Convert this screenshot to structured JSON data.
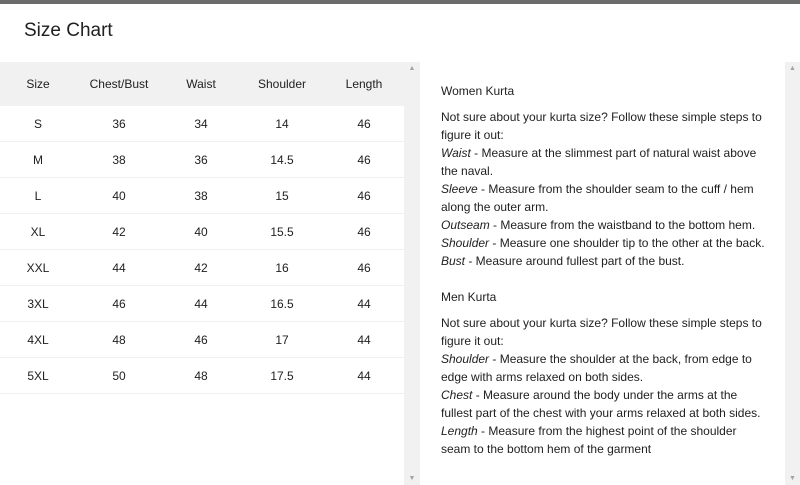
{
  "title": "Size Chart",
  "table": {
    "headers": [
      "Size",
      "Chest/Bust",
      "Waist",
      "Shoulder",
      "Length"
    ],
    "rows": [
      [
        "S",
        "36",
        "34",
        "14",
        "46"
      ],
      [
        "M",
        "38",
        "36",
        "14.5",
        "46"
      ],
      [
        "L",
        "40",
        "38",
        "15",
        "46"
      ],
      [
        "XL",
        "42",
        "40",
        "15.5",
        "46"
      ],
      [
        "XXL",
        "44",
        "42",
        "16",
        "46"
      ],
      [
        "3XL",
        "46",
        "44",
        "16.5",
        "44"
      ],
      [
        "4XL",
        "48",
        "46",
        "17",
        "44"
      ],
      [
        "5XL",
        "50",
        "48",
        "17.5",
        "44"
      ]
    ]
  },
  "guide": {
    "women": {
      "heading": "Women Kurta",
      "intro": "Not sure about your kurta size? Follow these simple steps to figure it out:",
      "items": [
        {
          "term": "Waist",
          "text": " - Measure at the slimmest part of natural waist above the naval."
        },
        {
          "term": "Sleeve",
          "text": " - Measure from the shoulder seam to the cuff / hem along the outer arm."
        },
        {
          "term": "Outseam",
          "text": " - Measure from the waistband to the bottom hem."
        },
        {
          "term": "Shoulder",
          "text": " - Measure one shoulder tip to the other at the back."
        },
        {
          "term": "Bust",
          "text": " - Measure around fullest part of the bust."
        }
      ]
    },
    "men": {
      "heading": "Men Kurta",
      "intro": "Not sure about your kurta size? Follow these simple steps to figure it out:",
      "items": [
        {
          "term": "Shoulder",
          "text": " - Measure the shoulder at the back, from edge to edge with arms relaxed on both sides."
        },
        {
          "term": "Chest",
          "text": " - Measure around the body under the arms at the fullest part of the chest with your arms relaxed at both sides."
        },
        {
          "term": "Length",
          "text": " - Measure from the highest point of the shoulder seam to the bottom hem of the garment"
        }
      ]
    }
  },
  "icons": {
    "up": "scroll-up-arrow",
    "down": "scroll-down-arrow"
  }
}
